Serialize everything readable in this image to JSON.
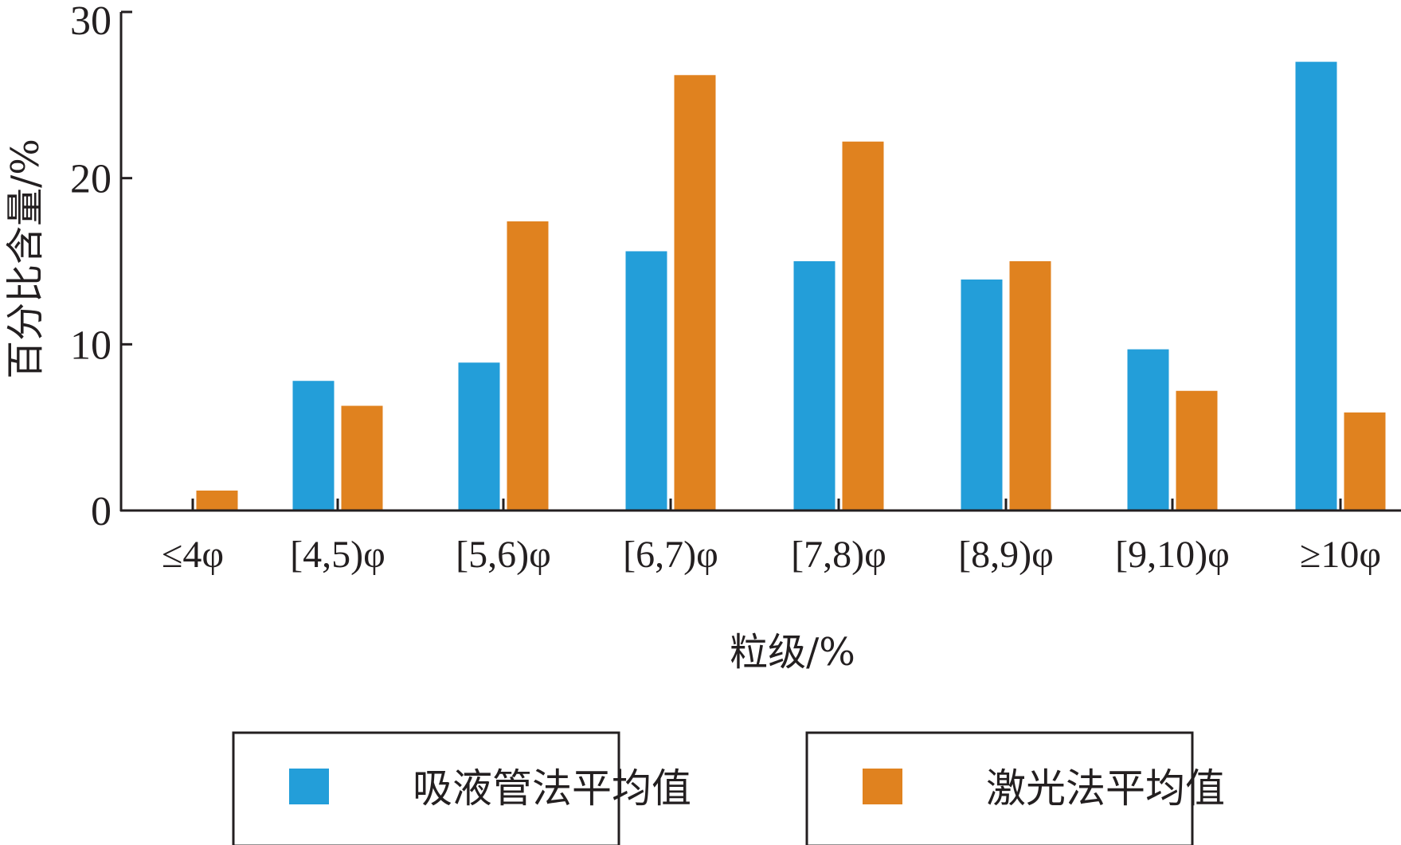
{
  "chart_data": {
    "type": "bar",
    "categories": [
      "≤4φ",
      "[4,5)φ",
      "[5,6)φ",
      "[6,7)φ",
      "[7,8)φ",
      "[8,9)φ",
      "[9,10)φ",
      "≥10φ"
    ],
    "series": [
      {
        "name": "吸液管法平均值",
        "color": "#239ed9",
        "values": [
          0,
          7.8,
          8.9,
          15.6,
          15.0,
          13.9,
          9.7,
          27.0
        ]
      },
      {
        "name": "激光法平均值",
        "color": "#e0821f",
        "values": [
          1.2,
          6.3,
          17.4,
          26.2,
          22.2,
          15.0,
          7.2,
          5.9
        ]
      }
    ],
    "title": "",
    "xlabel": "粒级/%",
    "ylabel": "百分比含量/%",
    "ylim": [
      0,
      30
    ],
    "yticks": [
      0,
      10,
      20,
      30
    ],
    "grid": false,
    "legend_position": "bottom"
  }
}
